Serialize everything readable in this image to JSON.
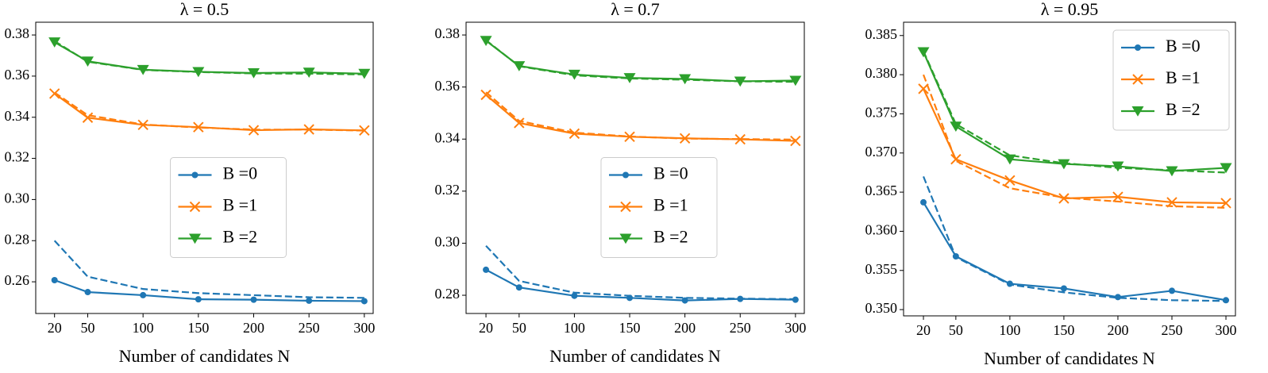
{
  "chart_data": [
    {
      "type": "line",
      "title": "λ = 0.5",
      "x_label": "Number of candidates N",
      "x": [
        20,
        50,
        100,
        150,
        200,
        250,
        300
      ],
      "xlim": [
        3,
        308
      ],
      "xticks": [
        20,
        50,
        100,
        150,
        200,
        250,
        300
      ],
      "ylim": [
        0.2446,
        0.3862
      ],
      "yticks": [
        0.26,
        0.28,
        {
          "value": 0.3,
          "label": "0.30"
        },
        0.32,
        0.34,
        0.36,
        0.38
      ],
      "legend_loc": "center",
      "series": [
        {
          "name": "B =0",
          "color": "#1f77b4",
          "marker": "circle",
          "values": [
            0.2608,
            0.255,
            0.2535,
            0.2515,
            0.2513,
            0.2508,
            0.2506
          ],
          "dashed_values": [
            0.28,
            0.2625,
            0.2565,
            0.2545,
            0.2535,
            0.2525,
            0.2522
          ]
        },
        {
          "name": "B =1",
          "color": "#ff7f0e",
          "marker": "x",
          "values": [
            0.3515,
            0.3398,
            0.3363,
            0.3352,
            0.3337,
            0.3341,
            0.3336
          ],
          "dashed_values": [
            0.352,
            0.341,
            0.3365,
            0.335,
            0.334,
            0.334,
            0.3335
          ]
        },
        {
          "name": "B =2",
          "color": "#2ca02c",
          "marker": "triangle-down",
          "values": [
            0.3765,
            0.3672,
            0.3631,
            0.3621,
            0.3615,
            0.3618,
            0.3612
          ],
          "dashed_values": [
            0.377,
            0.367,
            0.363,
            0.362,
            0.3613,
            0.3612,
            0.3608
          ]
        }
      ]
    },
    {
      "type": "line",
      "title": "λ = 0.7",
      "x_label": "Number of candidates N",
      "x": [
        20,
        50,
        100,
        150,
        200,
        250,
        300
      ],
      "xlim": [
        2,
        308
      ],
      "xticks": [
        20,
        50,
        100,
        150,
        200,
        250,
        300
      ],
      "ylim": [
        0.273,
        0.3849
      ],
      "yticks": [
        0.28,
        {
          "value": 0.3,
          "label": "0.30"
        },
        0.32,
        0.34,
        0.36,
        0.38
      ],
      "legend_loc": "center",
      "series": [
        {
          "name": "B =0",
          "color": "#1f77b4",
          "marker": "circle",
          "values": [
            0.2898,
            0.283,
            0.2798,
            0.279,
            0.278,
            0.2786,
            0.2783
          ],
          "dashed_values": [
            0.299,
            0.2855,
            0.281,
            0.2798,
            0.279,
            0.2787,
            0.2785
          ]
        },
        {
          "name": "B =1",
          "color": "#ff7f0e",
          "marker": "x",
          "values": [
            0.357,
            0.3462,
            0.3421,
            0.3409,
            0.3403,
            0.3399,
            0.3393
          ],
          "dashed_values": [
            0.358,
            0.347,
            0.3425,
            0.341,
            0.3402,
            0.34,
            0.3398
          ]
        },
        {
          "name": "B =2",
          "color": "#2ca02c",
          "marker": "triangle-down",
          "values": [
            0.3778,
            0.3681,
            0.3648,
            0.3635,
            0.3631,
            0.3622,
            0.3625
          ],
          "dashed_values": [
            0.378,
            0.368,
            0.3645,
            0.3633,
            0.3628,
            0.3622,
            0.362
          ]
        }
      ]
    },
    {
      "type": "line",
      "title": "λ = 0.95",
      "x_label": "Number of candidates N",
      "x": [
        20,
        50,
        100,
        150,
        200,
        250,
        300
      ],
      "xlim": [
        1.6,
        308.8
      ],
      "xticks": [
        20,
        50,
        100,
        150,
        200,
        250,
        300
      ],
      "ylim": [
        0.3492,
        0.3867
      ],
      "yticks": [
        {
          "value": 0.35,
          "label": "0.350"
        },
        {
          "value": 0.355,
          "label": "0.355"
        },
        {
          "value": 0.36,
          "label": "0.360"
        },
        0.365,
        {
          "value": 0.37,
          "label": "0.370"
        },
        0.375,
        {
          "value": 0.38,
          "label": "0.380"
        },
        0.385
      ],
      "legend_loc": "upper right",
      "series": [
        {
          "name": "B =0",
          "color": "#1f77b4",
          "marker": "circle",
          "values": [
            0.3637,
            0.3568,
            0.3533,
            0.3527,
            0.3516,
            0.3524,
            0.3512
          ],
          "dashed_values": [
            0.367,
            0.3567,
            0.3532,
            0.3522,
            0.3515,
            0.3512,
            0.3511
          ]
        },
        {
          "name": "B =1",
          "color": "#ff7f0e",
          "marker": "x",
          "values": [
            0.3782,
            0.3692,
            0.3665,
            0.3642,
            0.3644,
            0.3637,
            0.3636
          ],
          "dashed_values": [
            0.38,
            0.369,
            0.3655,
            0.3643,
            0.3638,
            0.3632,
            0.363
          ]
        },
        {
          "name": "B =2",
          "color": "#2ca02c",
          "marker": "triangle-down",
          "values": [
            0.3829,
            0.3734,
            0.3692,
            0.3686,
            0.3683,
            0.3677,
            0.3681
          ],
          "dashed_values": [
            0.383,
            0.3737,
            0.3697,
            0.3687,
            0.3681,
            0.3678,
            0.3675
          ]
        }
      ]
    }
  ]
}
